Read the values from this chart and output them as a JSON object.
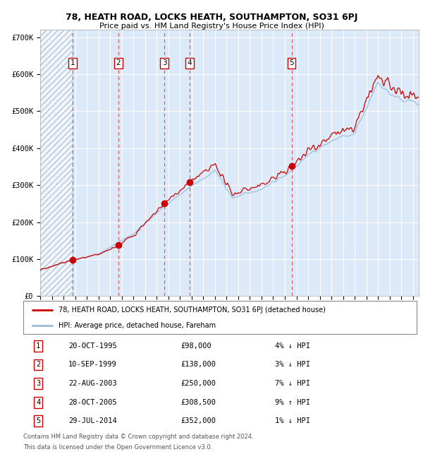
{
  "title1": "78, HEATH ROAD, LOCKS HEATH, SOUTHAMPTON, SO31 6PJ",
  "title2": "Price paid vs. HM Land Registry's House Price Index (HPI)",
  "xlim_start": 1993.0,
  "xlim_end": 2025.5,
  "ylim": [
    0,
    720000
  ],
  "yticks": [
    0,
    100000,
    200000,
    300000,
    400000,
    500000,
    600000,
    700000
  ],
  "ytick_labels": [
    "£0",
    "£100K",
    "£200K",
    "£300K",
    "£400K",
    "£500K",
    "£600K",
    "£700K"
  ],
  "sales": [
    {
      "num": 1,
      "date_year": 1995.8,
      "price": 98000,
      "label": "20-OCT-1995",
      "price_str": "£98,000",
      "hpi_str": "4% ↓ HPI"
    },
    {
      "num": 2,
      "date_year": 1999.7,
      "price": 138000,
      "label": "10-SEP-1999",
      "price_str": "£138,000",
      "hpi_str": "3% ↓ HPI"
    },
    {
      "num": 3,
      "date_year": 2003.65,
      "price": 250000,
      "label": "22-AUG-2003",
      "price_str": "£250,000",
      "hpi_str": "7% ↓ HPI"
    },
    {
      "num": 4,
      "date_year": 2005.83,
      "price": 308500,
      "label": "28-OCT-2005",
      "price_str": "£308,500",
      "hpi_str": "9% ↑ HPI"
    },
    {
      "num": 5,
      "date_year": 2014.58,
      "price": 352000,
      "label": "29-JUL-2014",
      "price_str": "£352,000",
      "hpi_str": "1% ↓ HPI"
    }
  ],
  "legend_line1": "78, HEATH ROAD, LOCKS HEATH, SOUTHAMPTON, SO31 6PJ (detached house)",
  "legend_line2": "HPI: Average price, detached house, Fareham",
  "footer1": "Contains HM Land Registry data © Crown copyright and database right 2024.",
  "footer2": "This data is licensed under the Open Government Licence v3.0.",
  "plot_bg": "#dce9f8",
  "hatch_color": "#b0c4d8",
  "grid_color": "#ffffff",
  "red_line_color": "#cc0000",
  "blue_line_color": "#99bbdd",
  "sale_marker_color": "#cc0000",
  "dashed_line_color": "#dd4444",
  "number_box_color": "#cc0000"
}
